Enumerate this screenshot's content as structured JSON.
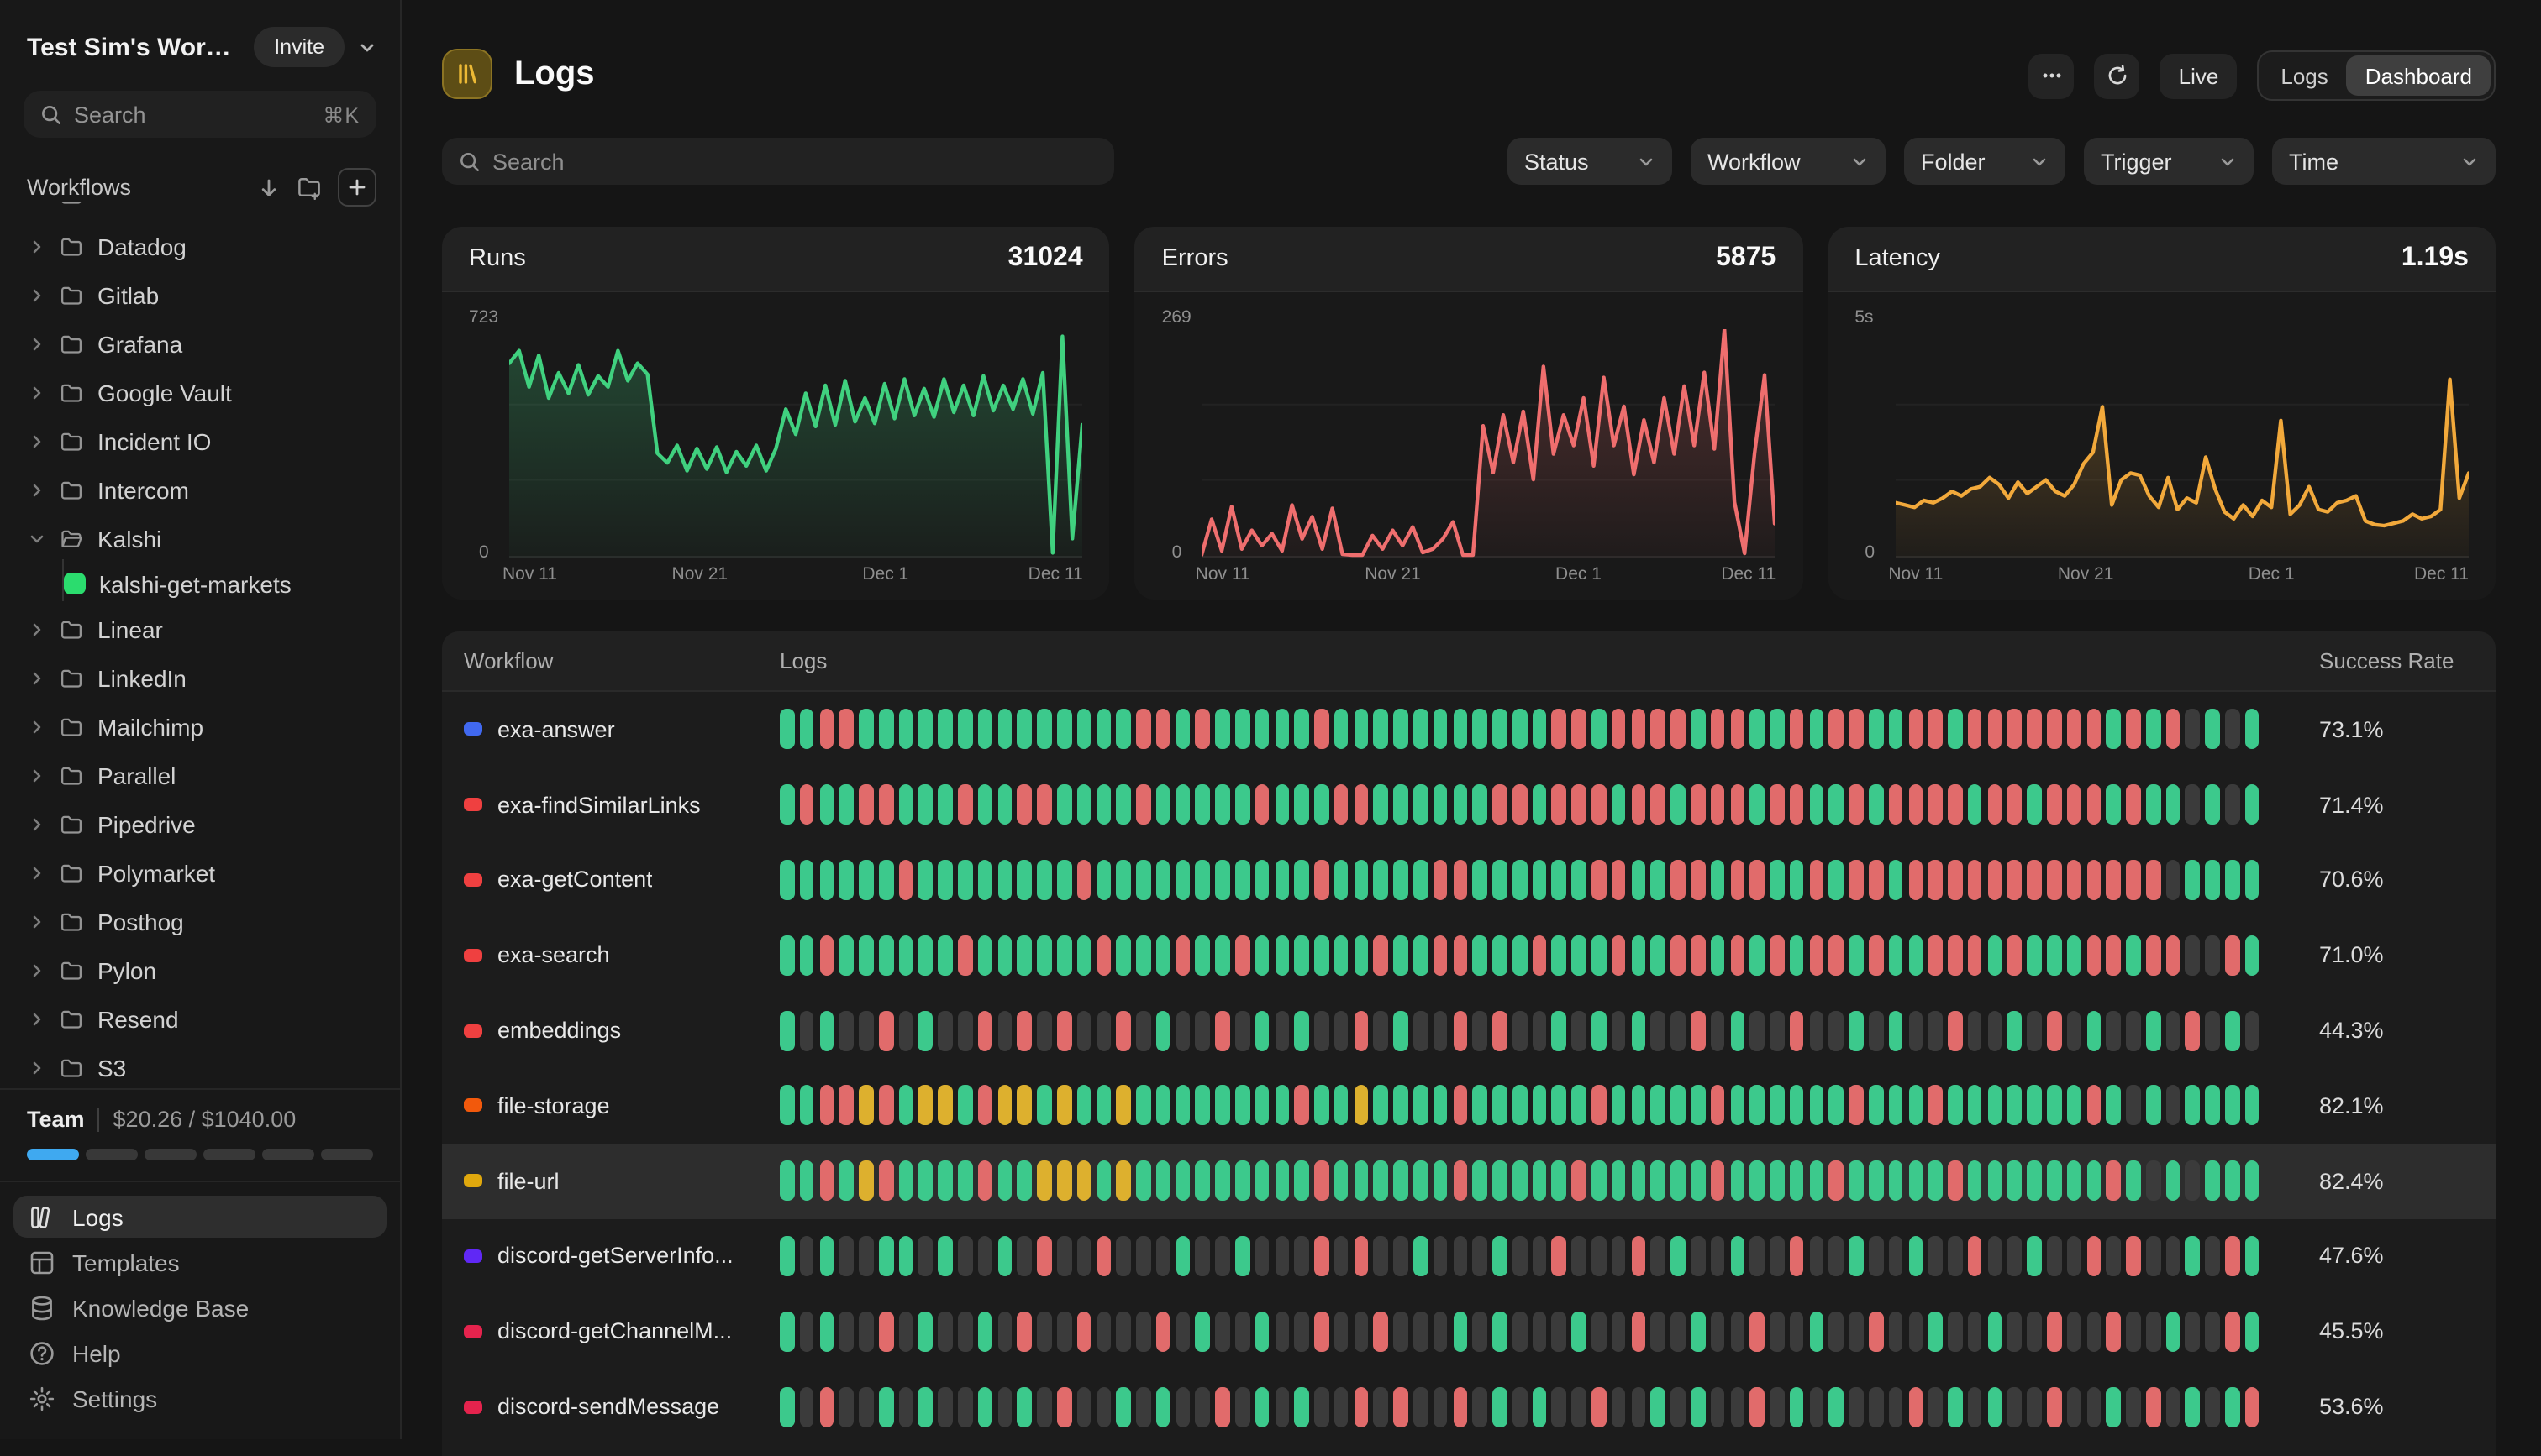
{
  "workspace": {
    "name": "Test Sim's Works...",
    "invite_label": "Invite"
  },
  "sidebar": {
    "search": {
      "placeholder": "Search",
      "shortcut": "⌘K"
    },
    "workflows_header": {
      "label": "Workflows"
    },
    "tree": [
      {
        "type": "partial",
        "label": ""
      },
      {
        "type": "folder",
        "label": "Datadog"
      },
      {
        "type": "folder",
        "label": "Gitlab"
      },
      {
        "type": "folder",
        "label": "Grafana"
      },
      {
        "type": "folder",
        "label": "Google Vault"
      },
      {
        "type": "folder",
        "label": "Incident IO"
      },
      {
        "type": "folder",
        "label": "Intercom"
      },
      {
        "type": "folder-open",
        "label": "Kalshi"
      },
      {
        "type": "workflow",
        "label": "kalshi-get-markets",
        "color": "#2bdc6e"
      },
      {
        "type": "folder",
        "label": "Linear"
      },
      {
        "type": "folder",
        "label": "LinkedIn"
      },
      {
        "type": "folder",
        "label": "Mailchimp"
      },
      {
        "type": "folder",
        "label": "Parallel"
      },
      {
        "type": "folder",
        "label": "Pipedrive"
      },
      {
        "type": "folder",
        "label": "Polymarket"
      },
      {
        "type": "folder",
        "label": "Posthog"
      },
      {
        "type": "folder",
        "label": "Pylon"
      },
      {
        "type": "folder",
        "label": "Resend"
      },
      {
        "type": "folder",
        "label": "S3"
      }
    ],
    "team": {
      "label": "Team",
      "usage": "$20.26 / $1040.00",
      "progress": {
        "segments": 6,
        "filled": 1,
        "filled_color": "#3fa9f0",
        "empty_color": "#383838"
      }
    },
    "nav": [
      {
        "icon": "logs",
        "label": "Logs",
        "selected": true
      },
      {
        "icon": "templates",
        "label": "Templates",
        "selected": false
      },
      {
        "icon": "knowledge",
        "label": "Knowledge Base",
        "selected": false
      },
      {
        "icon": "help",
        "label": "Help",
        "selected": false
      },
      {
        "icon": "settings",
        "label": "Settings",
        "selected": false
      }
    ]
  },
  "header": {
    "title": "Logs",
    "live_label": "Live",
    "toggle": {
      "options": [
        "Logs",
        "Dashboard"
      ],
      "selected": "Dashboard"
    }
  },
  "toolbar": {
    "search_placeholder": "Search",
    "filters": [
      {
        "label": "Status"
      },
      {
        "label": "Workflow"
      },
      {
        "label": "Folder"
      },
      {
        "label": "Trigger"
      },
      {
        "label": "Time"
      }
    ]
  },
  "chart_data": [
    {
      "type": "line",
      "title": "Runs",
      "total": "31024",
      "color": "#40d17f",
      "ylim": [
        0,
        723
      ],
      "ymax_label": "723",
      "yzero_label": "0",
      "grid": true,
      "x_labels": [
        "Nov 11",
        "Nov 21",
        "Dec 1",
        "Dec 11"
      ],
      "values": [
        615,
        655,
        540,
        640,
        505,
        585,
        520,
        610,
        515,
        575,
        540,
        655,
        560,
        615,
        580,
        330,
        300,
        355,
        275,
        345,
        280,
        350,
        270,
        335,
        290,
        355,
        275,
        345,
        470,
        390,
        520,
        415,
        545,
        420,
        560,
        430,
        505,
        425,
        550,
        440,
        565,
        450,
        535,
        445,
        565,
        460,
        545,
        450,
        575,
        465,
        545,
        470,
        565,
        455,
        585,
        15,
        700,
        60,
        420
      ]
    },
    {
      "type": "line",
      "title": "Errors",
      "total": "5875",
      "color": "#ef6e6e",
      "ylim": [
        0,
        269
      ],
      "ymax_label": "269",
      "yzero_label": "0",
      "grid": true,
      "x_labels": [
        "Nov 11",
        "Nov 21",
        "Dec 1",
        "Dec 11"
      ],
      "values": [
        3,
        45,
        8,
        60,
        10,
        32,
        14,
        28,
        8,
        62,
        22,
        48,
        10,
        58,
        4,
        3,
        3,
        26,
        10,
        32,
        14,
        36,
        6,
        10,
        22,
        42,
        3,
        3,
        155,
        100,
        168,
        112,
        172,
        92,
        225,
        122,
        168,
        132,
        188,
        108,
        212,
        132,
        178,
        98,
        162,
        112,
        188,
        122,
        202,
        132,
        218,
        128,
        269,
        65,
        5,
        122,
        215,
        40
      ]
    },
    {
      "type": "line",
      "title": "Latency",
      "total": "1.19s",
      "color": "#f2a93b",
      "ylim": [
        0,
        5
      ],
      "ymax_label": "5s",
      "yzero_label": "0",
      "grid": true,
      "x_labels": [
        "Nov 11",
        "Nov 21",
        "Dec 1",
        "Dec 11"
      ],
      "values": [
        1.2,
        1.15,
        1.1,
        1.25,
        1.2,
        1.3,
        1.45,
        1.35,
        1.5,
        1.55,
        1.75,
        1.6,
        1.3,
        1.65,
        1.4,
        1.55,
        1.7,
        1.45,
        1.35,
        1.6,
        2.05,
        2.3,
        3.3,
        1.15,
        1.7,
        1.85,
        1.8,
        1.35,
        1.1,
        1.75,
        1.05,
        1.3,
        1.2,
        2.2,
        1.5,
        1.0,
        0.85,
        1.15,
        0.9,
        1.25,
        1.1,
        3.0,
        0.95,
        1.15,
        1.55,
        1.05,
        1.0,
        1.2,
        1.25,
        1.35,
        0.8,
        0.72,
        0.7,
        0.75,
        0.8,
        0.95,
        0.85,
        0.9,
        1.05,
        3.9,
        1.3,
        1.85
      ]
    }
  ],
  "table": {
    "columns": [
      "Workflow",
      "Logs",
      "Success Rate"
    ],
    "bar_colors": {
      "g": "#3cc98c",
      "r": "#e16b6b",
      "y": "#ddb02e",
      "x": "#3b3b3b"
    },
    "rows": [
      {
        "name": "exa-answer",
        "dot_color": "#4169f0",
        "success": "73.1%",
        "highlighted": false,
        "bars": "ggrrg ggggg ggggg gggrr grggg ggrgg ggggg ggggr rgrrr rgrrg grgrr ggrrg rrrrr rrgrg rxgxg"
      },
      {
        "name": "exa-findSimilarLinks",
        "dot_color": "#ef4040",
        "success": "71.4%",
        "highlighted": false,
        "bars": "grggr rgggr ggrrg gggrg ggggr gggrr ggggg grrgr rrgrr grrrg rrggr grrrr grrgr rrgrg gxgxg"
      },
      {
        "name": "exa-getContent",
        "dot_color": "#ef4040",
        "success": "70.6%",
        "highlighted": false,
        "bars": "ggggg grggg ggggg rgggg ggggg ggrgg gggrr ggggg grrgg rrgrr ggrgr rgrrr rrrrr rrrrr xgggg"
      },
      {
        "name": "exa-search",
        "dot_color": "#ef4040",
        "success": "71.0%",
        "highlighted": false,
        "bars": "ggrgg ggggr ggggg grggg rggrg ggggg rggrr gggrg ggrgg rrgrg rgrrg rggrr rgrgg grrgr rxxrg"
      },
      {
        "name": "embeddings",
        "dot_color": "#ef4040",
        "success": "44.3%",
        "highlighted": false,
        "bars": "gxgxx rxgxx rxrxr xxrxg xxrxg xgxxr xgxxr xrxxg xgxgx xrxgx xrxxg xgxxr xxgxr xgxxg xrxgx"
      },
      {
        "name": "file-storage",
        "dot_color": "#f2590c",
        "success": "82.1%",
        "highlighted": false,
        "bars": "ggrry rgyyg ryygy ggygg ggggg grggy ggggr ggggg grggg ggrgg ggggr gggrg ggggg grgxg xgggg"
      },
      {
        "name": "file-url",
        "dot_color": "#e0a80d",
        "success": "82.4%",
        "highlighted": true,
        "bars": "ggrgy rgggg rggyy ygygg ggggg ggrgg ggggr ggggg rgggg ggrgg gggrg ggggr ggggg ggrgx gxggg"
      },
      {
        "name": "discord-getServerInfo...",
        "dot_color": "#6028f5",
        "success": "47.6%",
        "highlighted": false,
        "bars": "gxgxx ggxgx xgxrx xrxxx gxxgx xxrxr xxgxx xgxxr xxxrx gxxgx xrxxg xxgxx rxxgx xrxrx xgxrg"
      },
      {
        "name": "discord-getChannelM...",
        "dot_color": "#e5234d",
        "success": "45.5%",
        "highlighted": false,
        "bars": "gxgxx rxgxx gxrxx rxxxr xgxxg xxrxx rxxxg xgxxx gxxrx xgxxr xxgxx rxxgx xgxxr xxrxx gxxrg"
      },
      {
        "name": "discord-sendMessage",
        "dot_color": "#e5234d",
        "success": "53.6%",
        "highlighted": false,
        "bars": "gxrxx gxgxx gxgxr xxgxg xxrxg xgxxr xrxxr xgxgx xrxxg xgxxr xgxgx xxrxg xgxxr xxgxr xgxgr"
      }
    ]
  }
}
